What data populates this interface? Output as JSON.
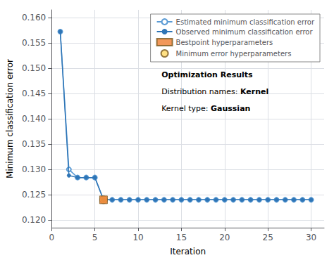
{
  "chart_data": {
    "type": "line",
    "xlabel": "Iteration",
    "ylabel": "Minimum classification error",
    "x": [
      1,
      2,
      3,
      4,
      5,
      6,
      7,
      8,
      9,
      10,
      11,
      12,
      13,
      14,
      15,
      16,
      17,
      18,
      19,
      20,
      21,
      22,
      23,
      24,
      25,
      26,
      27,
      28,
      29,
      30
    ],
    "series": [
      {
        "name": "Estimated minimum classification error",
        "color": "#5B9BD5",
        "marker": "open_circle",
        "line_style": "solid",
        "values": [
          0.1572,
          0.13,
          0.1284,
          0.1284,
          0.1284,
          0.124,
          0.124,
          0.124,
          0.124,
          0.124,
          0.124,
          0.124,
          0.124,
          0.124,
          0.124,
          0.124,
          0.124,
          0.124,
          0.124,
          0.124,
          0.124,
          0.124,
          0.124,
          0.124,
          0.124,
          0.124,
          0.124,
          0.124,
          0.124,
          0.124
        ]
      },
      {
        "name": "Observed minimum classification error",
        "color": "#2E75B6",
        "marker": "circle",
        "line_style": "solid",
        "values": [
          0.1572,
          0.1288,
          0.1284,
          0.1284,
          0.1284,
          0.124,
          0.124,
          0.124,
          0.124,
          0.124,
          0.124,
          0.124,
          0.124,
          0.124,
          0.124,
          0.124,
          0.124,
          0.124,
          0.124,
          0.124,
          0.124,
          0.124,
          0.124,
          0.124,
          0.124,
          0.124,
          0.124,
          0.124,
          0.124,
          0.124
        ]
      },
      {
        "name": "Bestpoint hyperparameters",
        "type": "scatter",
        "color": "#ED7D31",
        "marker": "square",
        "x": [
          6
        ],
        "values": [
          0.124
        ]
      },
      {
        "name": "Minimum error hyperparameters",
        "type": "scatter",
        "color": "#FFD966",
        "marker": "circle",
        "x": [
          6
        ],
        "values": [
          0.124
        ]
      }
    ],
    "xlim": [
      0.0,
      31.5
    ],
    "xticks": [
      0,
      5,
      10,
      15,
      20,
      25,
      30
    ],
    "ylim": [
      0.1185,
      0.1615
    ],
    "yticks": [
      {
        "value": 0.12,
        "label": "0.120"
      },
      0.125,
      {
        "value": 0.13,
        "label": "0.130"
      },
      0.135,
      {
        "value": 0.14,
        "label": "0.140"
      },
      0.145,
      {
        "value": 0.15,
        "label": "0.150"
      },
      0.155,
      {
        "value": 0.16,
        "label": "0.160"
      }
    ],
    "grid": true,
    "legend": "upper right",
    "annotations": [
      [
        "Optimization Results"
      ],
      [
        "Distribution names: ",
        "Kernel"
      ],
      [
        "Kernel type: ",
        "Gaussian"
      ]
    ]
  }
}
